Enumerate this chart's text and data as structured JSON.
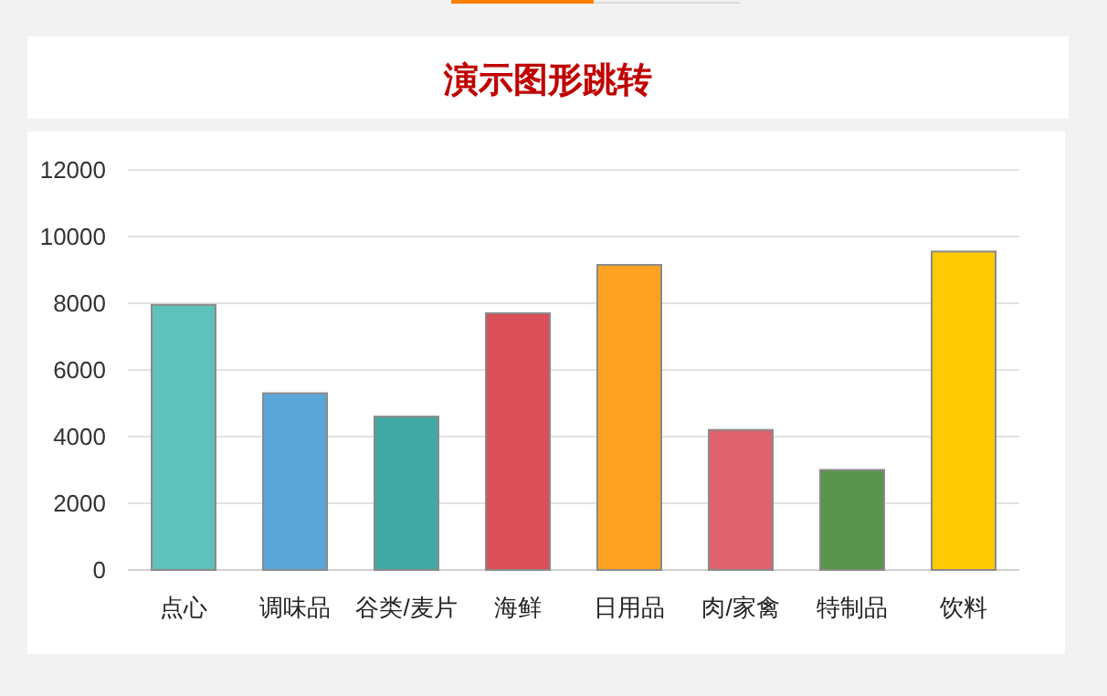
{
  "chart_data": {
    "type": "bar",
    "title": "演示图形跳转",
    "categories": [
      "点心",
      "调味品",
      "谷类/麦片",
      "海鲜",
      "日用品",
      "肉/家禽",
      "特制品",
      "饮料"
    ],
    "values": [
      7950,
      5300,
      4600,
      7700,
      9150,
      4200,
      3000,
      9550
    ],
    "colors": [
      "#5fc1bb",
      "#5ba6d9",
      "#40a9a3",
      "#da4f58",
      "#ffa221",
      "#df646e",
      "#5b944c",
      "#ffcb00"
    ],
    "ylim": [
      0,
      12000
    ],
    "yticks": [
      0,
      2000,
      4000,
      6000,
      8000,
      10000,
      12000
    ],
    "grid": "y"
  }
}
